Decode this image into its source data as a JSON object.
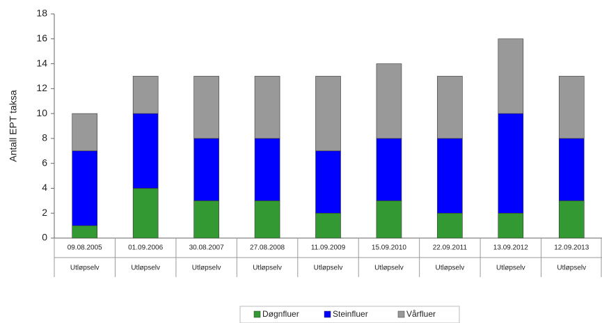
{
  "chart_data": {
    "type": "stacked_bar",
    "categories": [
      "09.08.2005",
      "01.09.2006",
      "30.08.2007",
      "27.08.2008",
      "11.09.2009",
      "15.09.2010",
      "22.09.2011",
      "13.09.2012",
      "12.09.2013"
    ],
    "subcategories": [
      "Utløpselv",
      "Utløpselv",
      "Utløpselv",
      "Utløpselv",
      "Utløpselv",
      "Utløpselv",
      "Utløpselv",
      "Utløpselv",
      "Utløpselv"
    ],
    "y_label": "Antall EPT taksa",
    "series": [
      {
        "name": "Døgnfluer",
        "color": "#339933",
        "values": [
          1,
          4,
          3,
          3,
          2,
          3,
          2,
          2,
          3
        ]
      },
      {
        "name": "Steinfluer",
        "color": "#0000ff",
        "values": [
          6,
          6,
          5,
          5,
          5,
          5,
          6,
          8,
          5
        ]
      },
      {
        "name": "Vårfluer",
        "color": "#999999",
        "values": [
          3,
          3,
          5,
          5,
          6,
          6,
          5,
          6,
          5
        ]
      }
    ],
    "ylim": [
      0,
      18
    ],
    "yticks": [
      0,
      2,
      4,
      6,
      8,
      10,
      12,
      14,
      16,
      18
    ],
    "legend": "bottom"
  }
}
